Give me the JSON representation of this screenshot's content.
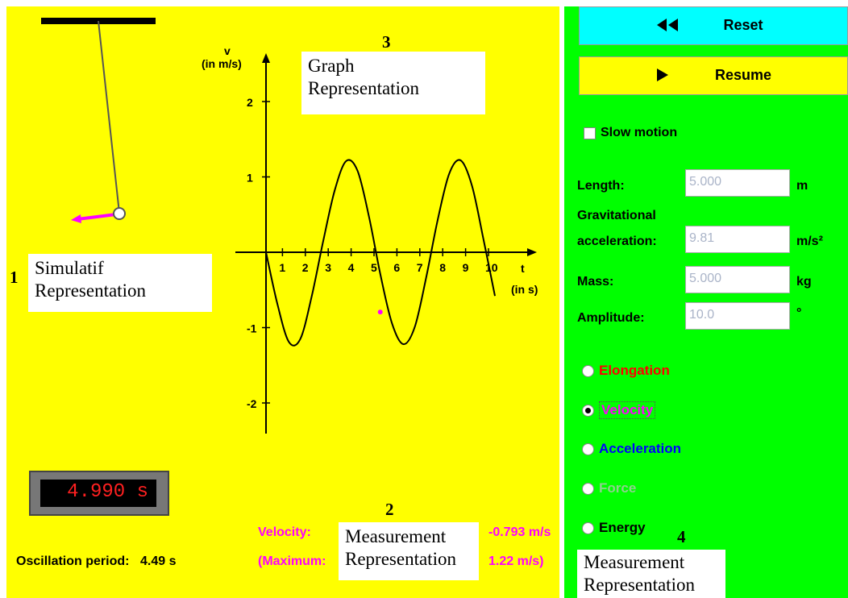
{
  "annotations": {
    "sim_num": "1",
    "sim_label_1": "Simulatif",
    "sim_label_2": "Representation",
    "meas_num": "2",
    "meas_label_1": "Measurement",
    "meas_label_2": "Representation",
    "graph_num": "3",
    "graph_label_1": "Graph",
    "graph_label_2": "Representation",
    "panel_num": "4",
    "panel_label_1": "Measurement",
    "panel_label_2": "Representation"
  },
  "graph": {
    "y_label_1": "v",
    "y_label_2": "(in m/s)",
    "x_label_1": "t",
    "x_label_2": "(in s)",
    "y_ticks": [
      "2",
      "1",
      "-1",
      "-2"
    ],
    "x_ticks": [
      "1",
      "2",
      "3",
      "4",
      "5",
      "6",
      "7",
      "8",
      "9",
      "10"
    ]
  },
  "chart_data": {
    "type": "line",
    "xlabel": "t (in s)",
    "ylabel": "v (in m/s)",
    "xlim": [
      0,
      10
    ],
    "ylim": [
      -2,
      2
    ],
    "grid": false,
    "series": [
      {
        "x": [
          0,
          0.5,
          1.0,
          1.5,
          2.0,
          2.5,
          3.0,
          3.5,
          4.0,
          4.5,
          5.0,
          5.5,
          6.0,
          6.5,
          7.0,
          7.5,
          8.0,
          8.5,
          9.0,
          9.5,
          10.0
        ],
        "y": [
          0,
          -0.69,
          -1.19,
          -1.15,
          -0.58,
          0.15,
          0.82,
          1.21,
          1.08,
          0.47,
          -0.3,
          -0.94,
          -1.22,
          -0.99,
          -0.33,
          0.43,
          1.04,
          1.22,
          0.88,
          0.17,
          -0.58
        ]
      }
    ],
    "marker": {
      "x": 4.99,
      "y": -0.793
    },
    "color": "#000000",
    "marker_color": "#ff00ff"
  },
  "timer": {
    "display": "4.990 s"
  },
  "period": {
    "label": "Oscillation period:",
    "value": "4.49 s"
  },
  "measure": {
    "velocity_label": "Velocity:",
    "velocity_value": "-0.793 m/s",
    "max_label": "(Maximum:",
    "max_value": "1.22 m/s)"
  },
  "controls": {
    "reset_label": "Reset",
    "resume_label": "Resume",
    "slow_motion_label": "Slow motion",
    "slow_motion_checked": false,
    "fields": [
      {
        "label": "Length:",
        "value": "5.000",
        "unit": "m"
      },
      {
        "label_1": "Gravitational",
        "label_2": "acceleration:",
        "value": "9.81",
        "unit": "m/s²"
      },
      {
        "label": "Mass:",
        "value": "5.000",
        "unit": "kg"
      },
      {
        "label": "Amplitude:",
        "value": "10.0",
        "unit": "°"
      }
    ],
    "radios": [
      {
        "label": "Elongation",
        "color": "#ff0000",
        "checked": false
      },
      {
        "label": "Velocity",
        "color": "#ff00ff",
        "checked": true
      },
      {
        "label": "Acceleration",
        "color": "#0000ff",
        "checked": false
      },
      {
        "label": "Force",
        "color": "#8fd08f",
        "checked": false
      },
      {
        "label": "Energy",
        "color": "#000000",
        "checked": false
      }
    ]
  },
  "colors": {
    "stage_bg": "#ffff00",
    "panel_bg": "#00ff00",
    "reset_bg": "#00ffff",
    "resume_bg": "#ffff00",
    "vector": "#ff00ff"
  },
  "icons": {
    "reset": "rewind-icon",
    "resume": "play-icon"
  }
}
